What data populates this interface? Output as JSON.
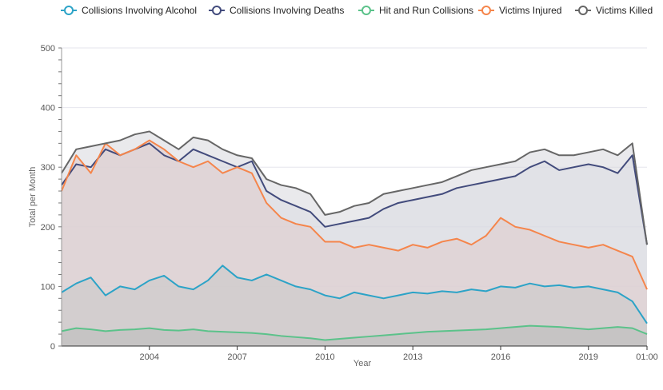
{
  "chart_data": {
    "type": "line",
    "title": "",
    "xlabel": "Year",
    "ylabel": "Total per Month",
    "ylim": [
      0,
      500
    ],
    "y_ticks": [
      0,
      100,
      200,
      300,
      400,
      500
    ],
    "x_ticks": [
      {
        "label": "2004",
        "x": 2004
      },
      {
        "label": "2007",
        "x": 2007
      },
      {
        "label": "2010",
        "x": 2010
      },
      {
        "label": "2013",
        "x": 2013
      },
      {
        "label": "2016",
        "x": 2016
      },
      {
        "label": "2019",
        "x": 2019
      },
      {
        "label": "01:00",
        "x": 2021
      }
    ],
    "xlim": [
      2001,
      2021
    ],
    "legend_position": "top",
    "grid": true,
    "stacked_area": true,
    "x": [
      2001,
      2001.5,
      2002,
      2002.5,
      2003,
      2003.5,
      2004,
      2004.5,
      2005,
      2005.5,
      2006,
      2006.5,
      2007,
      2007.5,
      2008,
      2008.5,
      2009,
      2009.5,
      2010,
      2010.5,
      2011,
      2011.5,
      2012,
      2012.5,
      2013,
      2013.5,
      2014,
      2014.5,
      2015,
      2015.5,
      2016,
      2016.5,
      2017,
      2017.5,
      2018,
      2018.5,
      2019,
      2019.5,
      2020,
      2020.5,
      2021
    ],
    "series": [
      {
        "name": "Collisions Involving Alcohol",
        "color": "#2ca3c7",
        "fill": "#c8c8c8",
        "values": [
          90,
          105,
          115,
          85,
          100,
          95,
          110,
          118,
          100,
          95,
          110,
          135,
          115,
          110,
          120,
          110,
          100,
          95,
          85,
          80,
          90,
          85,
          80,
          85,
          90,
          88,
          92,
          90,
          95,
          92,
          100,
          98,
          105,
          100,
          102,
          98,
          100,
          95,
          90,
          75,
          38
        ]
      },
      {
        "name": "Collisions Involving Deaths",
        "color": "#424b7c",
        "fill": "#dadce3",
        "values": [
          270,
          305,
          300,
          330,
          320,
          330,
          340,
          320,
          310,
          330,
          320,
          310,
          300,
          310,
          260,
          245,
          235,
          225,
          200,
          205,
          210,
          215,
          230,
          240,
          245,
          250,
          255,
          265,
          270,
          275,
          280,
          285,
          300,
          310,
          295,
          300,
          305,
          300,
          290,
          320,
          170
        ]
      },
      {
        "name": "Hit and Run Collisions",
        "color": "#5bc28a",
        "fill": "#bbbbbb",
        "values": [
          25,
          30,
          28,
          25,
          27,
          28,
          30,
          27,
          26,
          28,
          25,
          24,
          23,
          22,
          20,
          17,
          15,
          13,
          10,
          12,
          14,
          16,
          18,
          20,
          22,
          24,
          25,
          26,
          27,
          28,
          30,
          32,
          34,
          33,
          32,
          30,
          28,
          30,
          32,
          30,
          20
        ]
      },
      {
        "name": "Victims Injured",
        "color": "#f5854b",
        "fill": "#e0cbcb",
        "values": [
          260,
          320,
          290,
          340,
          320,
          330,
          345,
          330,
          310,
          300,
          310,
          290,
          300,
          290,
          240,
          215,
          205,
          200,
          175,
          175,
          165,
          170,
          165,
          160,
          170,
          165,
          175,
          180,
          170,
          185,
          215,
          200,
          195,
          185,
          175,
          170,
          165,
          170,
          160,
          150,
          95
        ]
      },
      {
        "name": "Victims Killed",
        "color": "#666666",
        "fill": "#d7d7dd",
        "values": [
          290,
          330,
          335,
          340,
          345,
          355,
          360,
          345,
          330,
          350,
          345,
          330,
          320,
          315,
          280,
          270,
          265,
          255,
          220,
          225,
          235,
          240,
          255,
          260,
          265,
          270,
          275,
          285,
          295,
          300,
          305,
          310,
          325,
          330,
          320,
          320,
          325,
          330,
          320,
          340,
          170
        ]
      }
    ]
  }
}
